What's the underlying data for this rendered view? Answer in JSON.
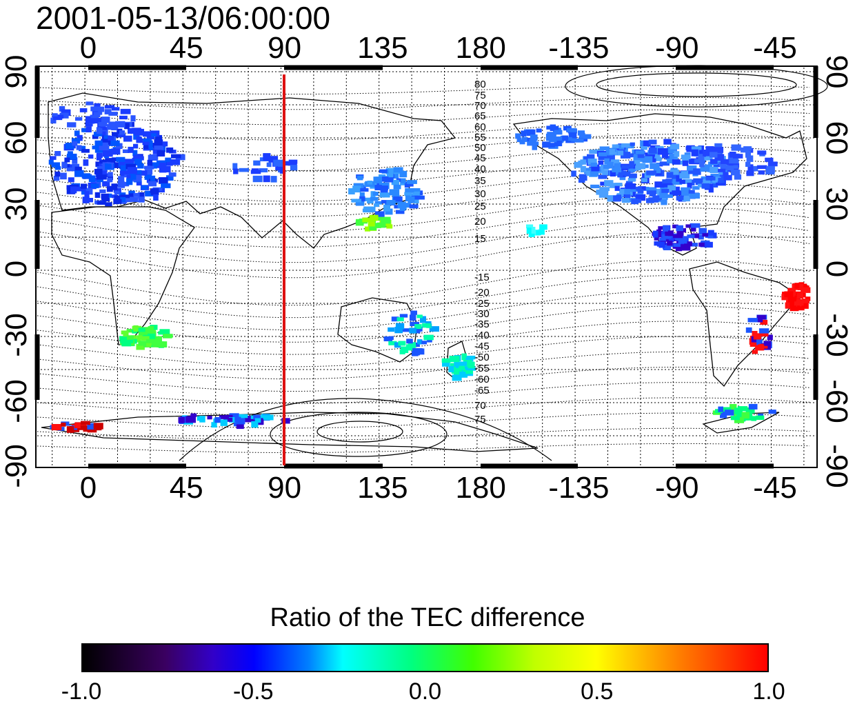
{
  "timestamp": "2001-05-13/06:00:00",
  "lon_ticks": [
    "0",
    "45",
    "90",
    "135",
    "180",
    "-135",
    "-90",
    "-45"
  ],
  "lat_ticks_left": [
    "90",
    "60",
    "30",
    "0",
    "-30",
    "-60",
    "-90"
  ],
  "lat_ticks_right": [
    "90",
    "60",
    "30",
    "0",
    "-30",
    "-60",
    "-90"
  ],
  "contour_labels_north": [
    "80",
    "75",
    "70",
    "65",
    "60",
    "55",
    "50",
    "45",
    "40",
    "35",
    "30",
    "25",
    "20",
    "15"
  ],
  "contour_labels_south": [
    "-15",
    "-20",
    "-25",
    "-30",
    "-35",
    "-40",
    "-45",
    "-50",
    "-55",
    "-60",
    "-65",
    "70",
    "75"
  ],
  "meridian_marker": {
    "longitude": 90,
    "color": "#dd1111"
  },
  "colorbar": {
    "title": "Ratio of the TEC difference",
    "ticks": [
      "-1.0",
      "-0.5",
      "0.0",
      "0.5",
      "1.0"
    ],
    "range": [
      -1.0,
      1.0
    ]
  }
}
